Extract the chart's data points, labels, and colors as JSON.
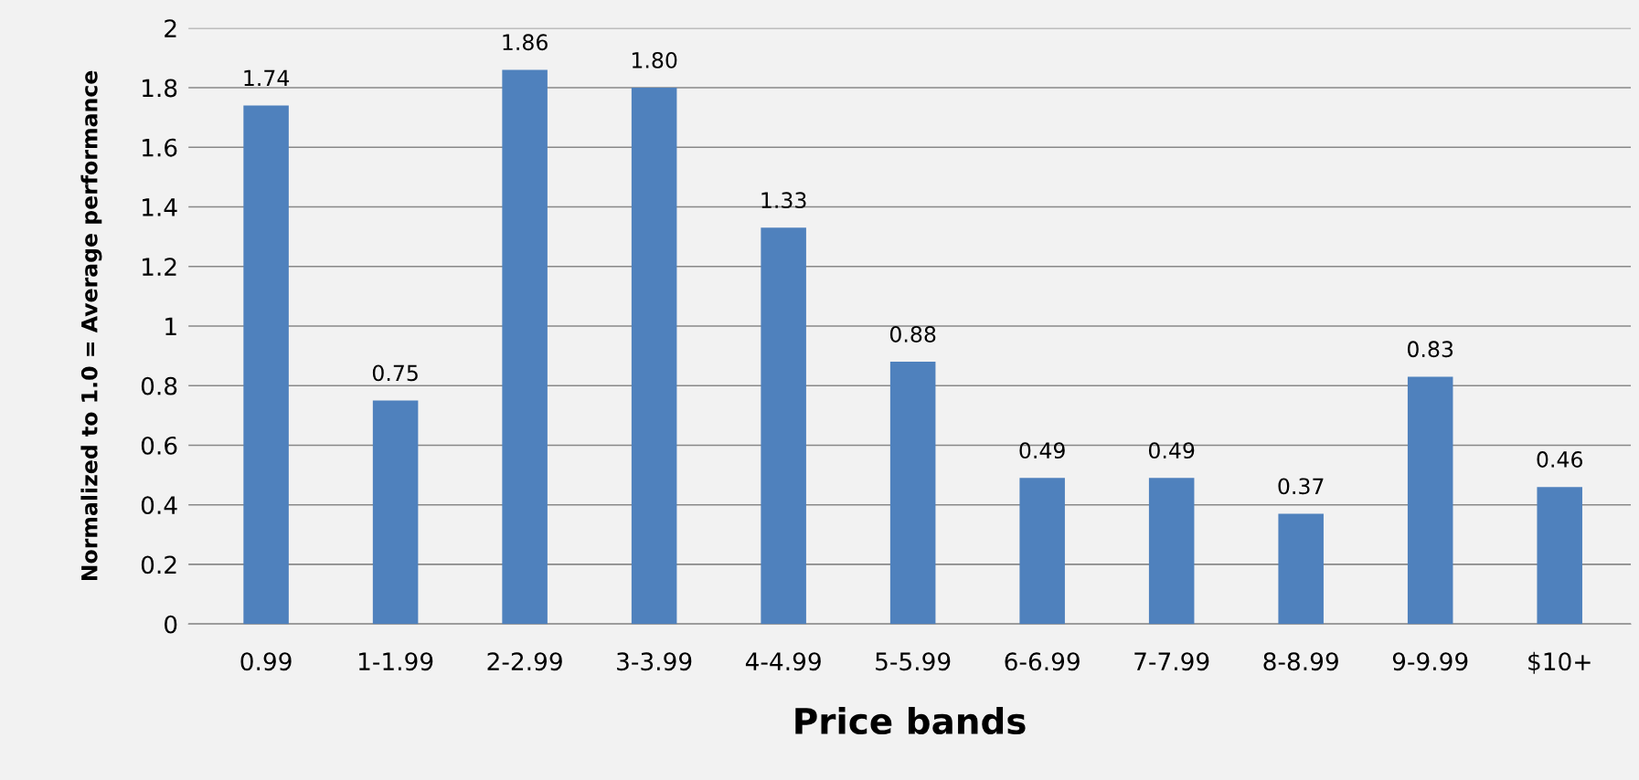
{
  "chart_data": {
    "type": "bar",
    "xlabel": "Price bands",
    "ylabel": "Normalized to 1.0 = Average performance",
    "categories": [
      "0.99",
      "1-1.99",
      "2-2.99",
      "3-3.99",
      "4-4.99",
      "5-5.99",
      "6-6.99",
      "7-7.99",
      "8-8.99",
      "9-9.99",
      "$10+"
    ],
    "values": [
      1.74,
      0.75,
      1.86,
      1.8,
      1.33,
      0.88,
      0.49,
      0.49,
      0.37,
      0.83,
      0.46
    ],
    "value_labels": [
      "1.74",
      "0.75",
      "1.86",
      "1.80",
      "1.33",
      "0.88",
      "0.49",
      "0.49",
      "0.37",
      "0.83",
      "0.46"
    ],
    "color": "#4f81bd",
    "ylim": [
      0,
      2
    ],
    "yticks": [
      0,
      0.2,
      0.4,
      0.6,
      0.8,
      1,
      1.2,
      1.4,
      1.6,
      1.8,
      2
    ],
    "grid": "y"
  }
}
